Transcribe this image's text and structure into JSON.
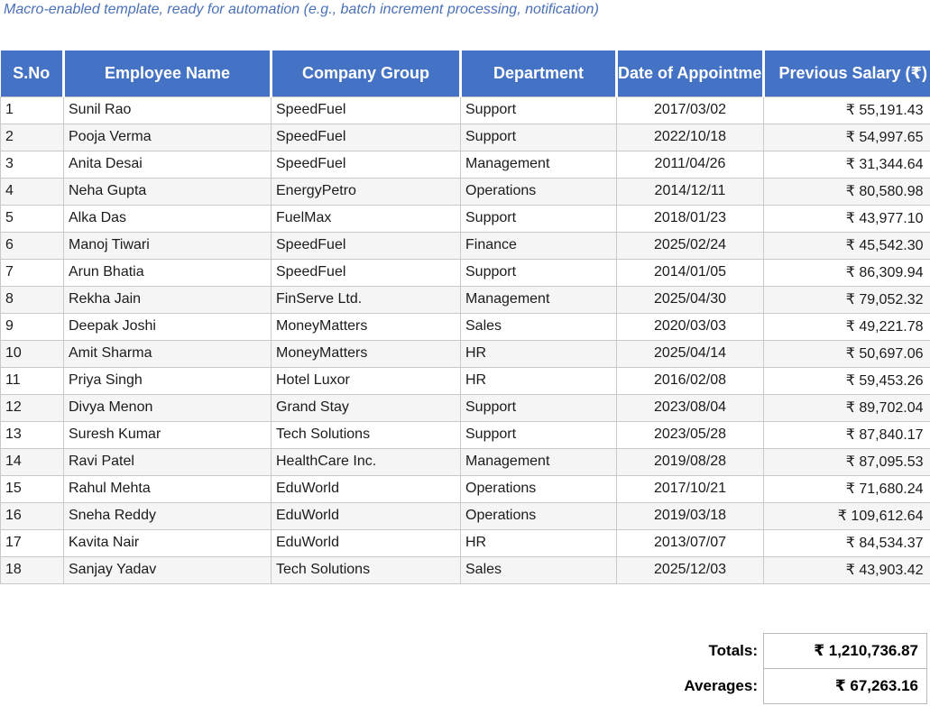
{
  "note": "Macro-enabled template, ready for automation (e.g., batch increment processing, notification)",
  "table": {
    "columns": [
      {
        "key": "sno",
        "label": "S.No",
        "align": "left"
      },
      {
        "key": "name",
        "label": "Employee Name",
        "align": "left"
      },
      {
        "key": "company",
        "label": "Company Group",
        "align": "left"
      },
      {
        "key": "dept",
        "label": "Department",
        "align": "left"
      },
      {
        "key": "date",
        "label": "Date of Appointment",
        "align": "center"
      },
      {
        "key": "salary",
        "label": "Previous Salary (₹)",
        "align": "right"
      }
    ],
    "rows": [
      [
        "1",
        "Sunil Rao",
        "SpeedFuel",
        "Support",
        "2017/03/02",
        "₹ 55,191.43"
      ],
      [
        "2",
        "Pooja Verma",
        "SpeedFuel",
        "Support",
        "2022/10/18",
        "₹ 54,997.65"
      ],
      [
        "3",
        "Anita Desai",
        "SpeedFuel",
        "Management",
        "2011/04/26",
        "₹ 31,344.64"
      ],
      [
        "4",
        "Neha Gupta",
        "EnergyPetro",
        "Operations",
        "2014/12/11",
        "₹ 80,580.98"
      ],
      [
        "5",
        "Alka Das",
        "FuelMax",
        "Support",
        "2018/01/23",
        "₹ 43,977.10"
      ],
      [
        "6",
        "Manoj Tiwari",
        "SpeedFuel",
        "Finance",
        "2025/02/24",
        "₹ 45,542.30"
      ],
      [
        "7",
        "Arun Bhatia",
        "SpeedFuel",
        "Support",
        "2014/01/05",
        "₹ 86,309.94"
      ],
      [
        "8",
        "Rekha Jain",
        "FinServe Ltd.",
        "Management",
        "2025/04/30",
        "₹ 79,052.32"
      ],
      [
        "9",
        "Deepak Joshi",
        "MoneyMatters",
        "Sales",
        "2020/03/03",
        "₹ 49,221.78"
      ],
      [
        "10",
        "Amit Sharma",
        "MoneyMatters",
        "HR",
        "2025/04/14",
        "₹ 50,697.06"
      ],
      [
        "11",
        "Priya Singh",
        "Hotel Luxor",
        "HR",
        "2016/02/08",
        "₹ 59,453.26"
      ],
      [
        "12",
        "Divya Menon",
        "Grand Stay",
        "Support",
        "2023/08/04",
        "₹ 89,702.04"
      ],
      [
        "13",
        "Suresh Kumar",
        "Tech Solutions",
        "Support",
        "2023/05/28",
        "₹ 87,840.17"
      ],
      [
        "14",
        "Ravi Patel",
        "HealthCare Inc.",
        "Management",
        "2019/08/28",
        "₹ 87,095.53"
      ],
      [
        "15",
        "Rahul Mehta",
        "EduWorld",
        "Operations",
        "2017/10/21",
        "₹ 71,680.24"
      ],
      [
        "16",
        "Sneha Reddy",
        "EduWorld",
        "Operations",
        "2019/03/18",
        "₹ 109,612.64"
      ],
      [
        "17",
        "Kavita Nair",
        "EduWorld",
        "HR",
        "2013/07/07",
        "₹ 84,534.37"
      ],
      [
        "18",
        "Sanjay Yadav",
        "Tech Solutions",
        "Sales",
        "2025/12/03",
        "₹ 43,903.42"
      ]
    ]
  },
  "summary": {
    "totals_label": "Totals:",
    "totals_value": "₹ 1,210,736.87",
    "averages_label": "Averages:",
    "averages_value": "₹ 67,263.16"
  },
  "colors": {
    "header_bg": "#4472C4",
    "header_text": "#FFFFFF",
    "note_text": "#4A70B8",
    "row_stripe": "#F5F5F5",
    "cell_border": "#C9C9C9",
    "summary_box_border": "#B9B9B9"
  }
}
